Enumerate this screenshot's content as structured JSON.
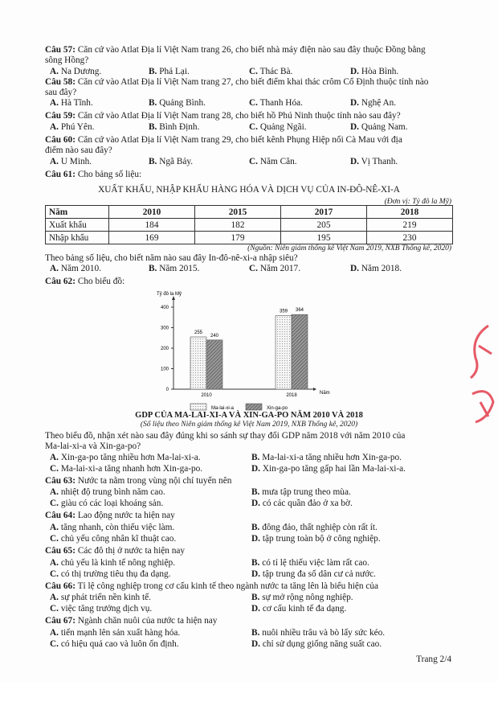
{
  "questions": {
    "q57": {
      "label": "Câu 57:",
      "text1": "Căn cứ vào Atlat Địa lí Việt Nam trang 26, cho biết nhà máy điện nào sau đây thuộc Đồng bằng",
      "text2": "sông Hồng?",
      "a": "Na Dương.",
      "b": "Phả Lại.",
      "c": "Thác Bà.",
      "d": "Hòa Bình."
    },
    "q58": {
      "label": "Câu 58:",
      "text1": "Căn cứ vào Atlat Địa lí Việt Nam trang 27, cho biết điểm khai thác crôm Cổ Định thuộc tỉnh nào",
      "text2": "sau đây?",
      "a": "Hà Tĩnh.",
      "b": "Quảng Bình.",
      "c": "Thanh Hóa.",
      "d": "Nghệ An."
    },
    "q59": {
      "label": "Câu 59:",
      "text1": "Căn cứ vào Atlat Địa lí Việt Nam trang 28, cho biết hồ Phú Ninh thuộc tỉnh nào sau đây?",
      "a": "Phú Yên.",
      "b": "Bình Định.",
      "c": "Quảng Ngãi.",
      "d": "Quảng Nam."
    },
    "q60": {
      "label": "Câu 60:",
      "text1": "Căn cứ vào Atlat Địa lí Việt Nam trang 29, cho biết kênh Phụng Hiệp nối Cà Mau với địa",
      "text2": "điểm nào sau đây?",
      "a": "U Minh.",
      "b": "Ngã Bảy.",
      "c": "Năm Căn.",
      "d": "Vị Thanh."
    },
    "q61": {
      "label": "Câu 61:",
      "text1": "Cho bảng số liệu:",
      "table_title": "XUẤT KHẨU, NHẬP KHẨU HÀNG HÓA VÀ DỊCH VỤ CỦA IN-ĐÔ-NÊ-XI-A",
      "unit": "(Đơn vị: Tỷ đô la Mỹ)",
      "table": {
        "header": [
          "Năm",
          "2010",
          "2015",
          "2017",
          "2018"
        ],
        "rows": [
          [
            "Xuất khẩu",
            "184",
            "182",
            "205",
            "219"
          ],
          [
            "Nhập khẩu",
            "169",
            "179",
            "195",
            "230"
          ]
        ]
      },
      "source": "(Nguồn: Niên giám thống kê Việt Nam 2019, NXB Thống kê, 2020)",
      "question": "Theo bảng số liệu, cho biết năm nào sau đây In-đô-nê-xi-a nhập siêu?",
      "a": "Năm 2010.",
      "b": "Năm 2015.",
      "c": "Năm 2017.",
      "d": "Năm 2018."
    },
    "q62": {
      "label": "Câu 62:",
      "text1": "Cho biểu đồ:",
      "question1": "Theo biểu đồ, nhận xét nào sau đây đúng khi so sánh sự thay đổi GDP năm 2018 với năm 2010 của",
      "question2": "Ma-lai-xi-a và Xin-ga-po?",
      "a": "Xin-ga-po tăng nhiều hơn Ma-lai-xi-a.",
      "b": "Ma-lai-xi-a tăng nhiều hơn Xin-ga-po.",
      "c": "Ma-lai-xi-a tăng nhanh hơn Xin-ga-po.",
      "d": "Xin-ga-po tăng gấp hai lần Ma-lai-xi-a."
    },
    "q63": {
      "label": "Câu 63:",
      "text1": "Nước ta nằm trong vùng nội chí tuyến nên",
      "a": "nhiệt độ trung bình năm cao.",
      "b": "mưa tập trung theo mùa.",
      "c": "giàu có các loại khoáng sản.",
      "d": "có các quần đảo ở xa bờ."
    },
    "q64": {
      "label": "Câu 64:",
      "text1": "Lao động nước ta hiện nay",
      "a": "tăng nhanh, còn thiếu việc làm.",
      "b": "đông đảo, thất nghiệp còn rất ít.",
      "c": "chủ yếu công nhân kĩ thuật cao.",
      "d": "tập trung toàn bộ ở công nghiệp."
    },
    "q65": {
      "label": "Câu 65:",
      "text1": "Các đô thị ở nước ta hiện nay",
      "a": "chủ yếu là kinh tế nông nghiệp.",
      "b": "có tỉ lệ thiếu việc làm rất cao.",
      "c": "có thị trường tiêu thụ đa dạng.",
      "d": "tập trung đa số dân cư cả nước."
    },
    "q66": {
      "label": "Câu 66:",
      "text1": "Tỉ lệ công nghiệp trong cơ cấu kinh tế theo ngành nước ta tăng lên là biểu hiện của",
      "a": "sự phát triển nền kinh tế.",
      "b": "sự mở rộng nông nghiệp.",
      "c": "việc tăng trưởng dịch vụ.",
      "d": "cơ cấu kinh tế đa dạng."
    },
    "q67": {
      "label": "Câu 67:",
      "text1": "Ngành chăn nuôi của nước ta hiện nay",
      "a": "tiến mạnh lên sản xuất hàng hóa.",
      "b": "nuôi nhiều trâu và bò lấy sức kéo.",
      "c": "có hiệu quả cao và luôn ổn định.",
      "d": "chỉ sử dụng giống năng suất cao."
    }
  },
  "option_letters": {
    "a": "A.",
    "b": "B.",
    "c": "C.",
    "d": "D."
  },
  "chart_data": {
    "type": "bar",
    "title": "GDP CỦA MA-LAI-XI-A VÀ XIN-GA-PO NĂM 2010 VÀ 2018",
    "subtitle": "(Số liệu theo Niên giám thống kê Việt Nam 2019, NXB Thống kê, 2020)",
    "ylabel": "Tỷ đô la Mỹ",
    "xlabel": "Năm",
    "categories": [
      "2010",
      "2018"
    ],
    "yticks": [
      "0",
      "100",
      "200",
      "300",
      "400"
    ],
    "ylim": [
      0,
      400
    ],
    "legend": "bottom",
    "series": [
      {
        "name": "Ma-lai-xi-a",
        "values": [
          255,
          359
        ],
        "pattern": "dotted-light"
      },
      {
        "name": "Xin-ga-po",
        "values": [
          240,
          364
        ],
        "pattern": "hatched-dark"
      }
    ]
  },
  "footer": {
    "page": "Trang 2/4"
  }
}
